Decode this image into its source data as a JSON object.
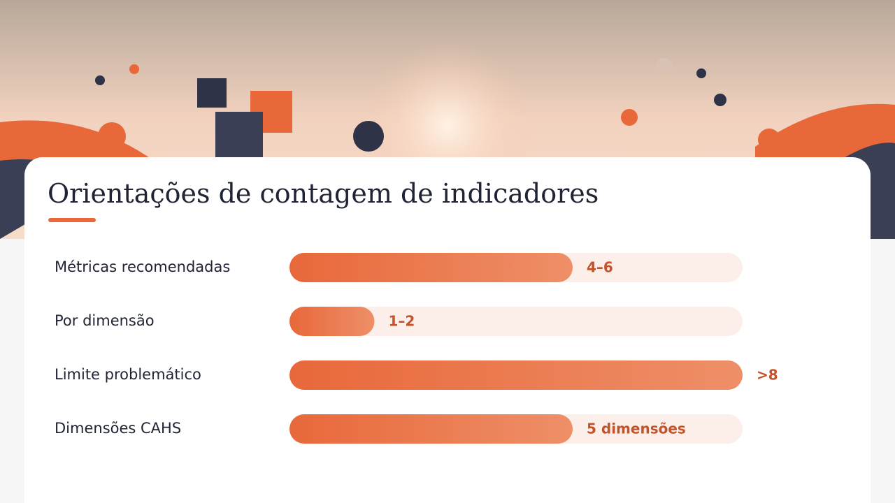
{
  "chart_data": {
    "type": "bar",
    "orientation": "horizontal",
    "title": "Orientações de contagem de indicadores",
    "categories": [
      "Métricas recomendadas",
      "Por dimensão",
      "Limite problemático",
      "Dimensões CAHS"
    ],
    "values": [
      5,
      1.5,
      8,
      5
    ],
    "value_labels": [
      "4–6",
      "1–2",
      ">8",
      "5 dimensões"
    ],
    "xlim": [
      0,
      8
    ],
    "color": "#e8683a"
  }
}
